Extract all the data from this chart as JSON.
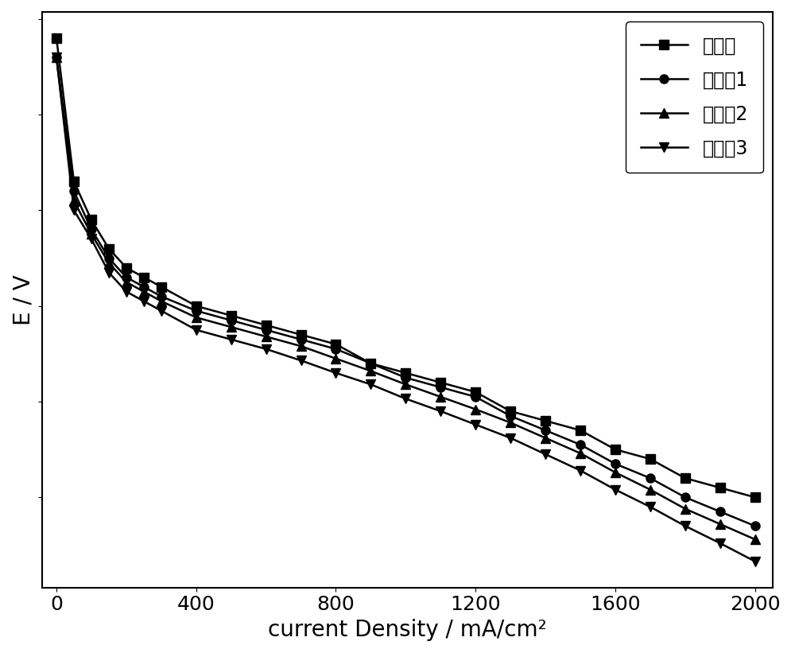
{
  "xlabel": "current Density / mA/cm²",
  "ylabel": "E / V",
  "xlim": [
    -40,
    2050
  ],
  "legend_labels": [
    "对比例",
    "实施例1",
    "实施例2",
    "实施例3"
  ],
  "markers": [
    "s",
    "o",
    "^",
    "v"
  ],
  "color": "#000000",
  "linewidth": 1.8,
  "markersize": 8,
  "xticks": [
    0,
    400,
    800,
    1200,
    1600,
    2000
  ],
  "series": {
    "对比例": {
      "x": [
        0,
        50,
        100,
        150,
        200,
        250,
        300,
        400,
        500,
        600,
        700,
        800,
        900,
        1000,
        1100,
        1200,
        1300,
        1400,
        1500,
        1600,
        1700,
        1800,
        1900,
        2000
      ],
      "y": [
        0.98,
        0.83,
        0.79,
        0.76,
        0.74,
        0.73,
        0.72,
        0.7,
        0.69,
        0.68,
        0.67,
        0.66,
        0.64,
        0.63,
        0.62,
        0.61,
        0.59,
        0.58,
        0.57,
        0.55,
        0.54,
        0.52,
        0.51,
        0.5
      ]
    },
    "实施例1": {
      "x": [
        0,
        50,
        100,
        150,
        200,
        250,
        300,
        400,
        500,
        600,
        700,
        800,
        900,
        1000,
        1100,
        1200,
        1300,
        1400,
        1500,
        1600,
        1700,
        1800,
        1900,
        2000
      ],
      "y": [
        0.96,
        0.82,
        0.78,
        0.75,
        0.73,
        0.72,
        0.71,
        0.695,
        0.685,
        0.675,
        0.665,
        0.655,
        0.64,
        0.625,
        0.615,
        0.605,
        0.585,
        0.57,
        0.555,
        0.535,
        0.52,
        0.5,
        0.485,
        0.47
      ]
    },
    "实施例2": {
      "x": [
        0,
        50,
        100,
        150,
        200,
        250,
        300,
        400,
        500,
        600,
        700,
        800,
        900,
        1000,
        1100,
        1200,
        1300,
        1400,
        1500,
        1600,
        1700,
        1800,
        1900,
        2000
      ],
      "y": [
        0.96,
        0.81,
        0.775,
        0.745,
        0.725,
        0.715,
        0.705,
        0.688,
        0.678,
        0.668,
        0.658,
        0.645,
        0.632,
        0.618,
        0.605,
        0.592,
        0.578,
        0.562,
        0.546,
        0.526,
        0.508,
        0.488,
        0.472,
        0.456
      ]
    },
    "实施例3": {
      "x": [
        0,
        50,
        100,
        150,
        200,
        250,
        300,
        400,
        500,
        600,
        700,
        800,
        900,
        1000,
        1100,
        1200,
        1300,
        1400,
        1500,
        1600,
        1700,
        1800,
        1900,
        2000
      ],
      "y": [
        0.96,
        0.8,
        0.77,
        0.735,
        0.715,
        0.705,
        0.695,
        0.675,
        0.665,
        0.655,
        0.643,
        0.63,
        0.618,
        0.603,
        0.59,
        0.576,
        0.562,
        0.545,
        0.528,
        0.508,
        0.49,
        0.47,
        0.452,
        0.433
      ]
    }
  },
  "font_size_label": 20,
  "font_size_tick": 18,
  "font_size_legend": 17,
  "figure_width": 10.0,
  "figure_height": 8.21,
  "dpi": 100
}
